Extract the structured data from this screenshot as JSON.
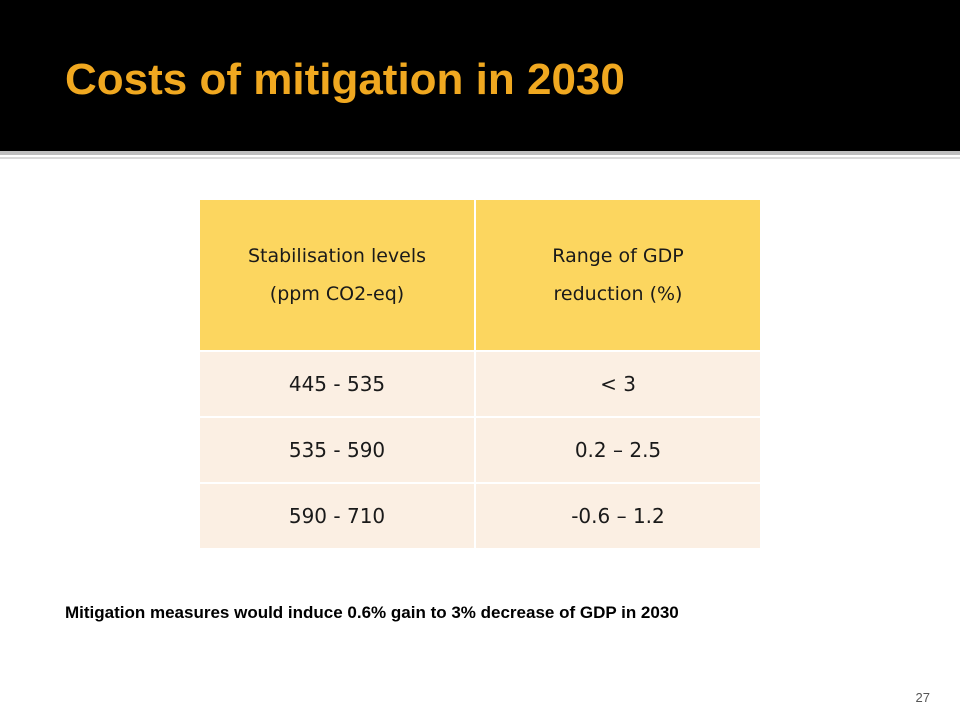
{
  "slide": {
    "title": "Costs of mitigation in 2030",
    "page_number": "27"
  },
  "table": {
    "headers": [
      {
        "line1": "Stabilisation levels",
        "line2": "(ppm CO2-eq)"
      },
      {
        "line1": "Range of GDP",
        "line2": "reduction (%)"
      }
    ],
    "rows": [
      [
        "445 - 535",
        "< 3"
      ],
      [
        "535 - 590",
        "0.2 – 2.5"
      ],
      [
        "590 - 710",
        "-0.6 – 1.2"
      ]
    ]
  },
  "note": "Mitigation measures would induce 0.6% gain to 3% decrease of GDP in 2030",
  "colors": {
    "title_bar": "#000000",
    "title_text": "#f0a820",
    "header_fill": "#fcd65f",
    "row_fill": "#fbefe3"
  }
}
